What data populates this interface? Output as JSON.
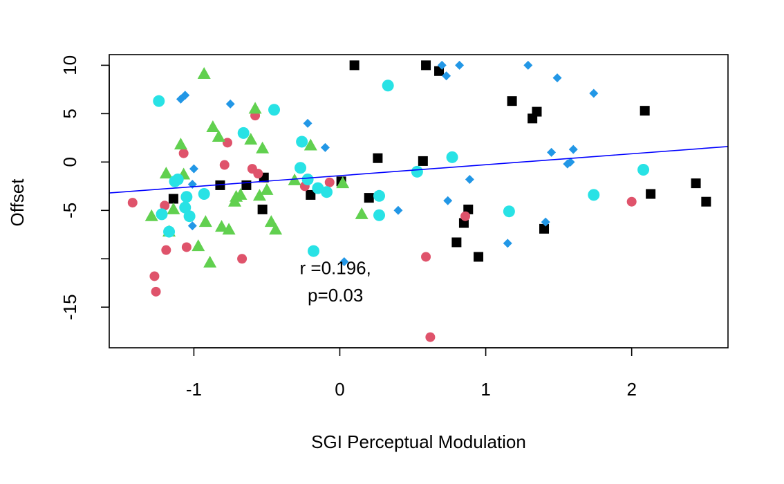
{
  "chart_data": {
    "type": "scatter",
    "title": "",
    "xlabel": "SGI Perceptual Modulation",
    "ylabel": "Offset",
    "xlim": [
      -1.58,
      2.66
    ],
    "ylim": [
      -19.2,
      11.1
    ],
    "x_ticks": [
      -1,
      0,
      1,
      2
    ],
    "x_tick_labels": [
      "-1",
      "0",
      "1",
      "2"
    ],
    "y_ticks": [
      10,
      5,
      0,
      -5,
      -15
    ],
    "y_tick_labels": [
      "10",
      "5",
      "0",
      "-5",
      "-15"
    ],
    "grid": false,
    "annotation": {
      "line1": "r =0.196,",
      "line2": "p=0.03",
      "x": -0.03,
      "y_line1": -11.6,
      "y_line2": -14.4
    },
    "regression_line": {
      "color": "#0000ff",
      "points": [
        [
          -1.58,
          -3.2
        ],
        [
          2.66,
          1.6
        ]
      ]
    },
    "series": [
      {
        "marker": "square",
        "color": "#000000",
        "points": [
          [
            -1.14,
            -3.8
          ],
          [
            -0.82,
            -2.4
          ],
          [
            -0.64,
            -2.4
          ],
          [
            -0.52,
            -1.6
          ],
          [
            -0.53,
            -4.9
          ],
          [
            -0.2,
            -3.4
          ],
          [
            0.01,
            -2.0
          ],
          [
            0.2,
            -3.7
          ],
          [
            0.26,
            0.4
          ],
          [
            0.1,
            10.0
          ],
          [
            0.57,
            0.1
          ],
          [
            0.59,
            10.0
          ],
          [
            0.68,
            9.4
          ],
          [
            0.8,
            -8.3
          ],
          [
            0.85,
            -6.3
          ],
          [
            0.88,
            -4.9
          ],
          [
            0.95,
            -9.8
          ],
          [
            1.18,
            6.3
          ],
          [
            1.32,
            4.5
          ],
          [
            1.35,
            5.2
          ],
          [
            1.4,
            -6.9
          ],
          [
            2.09,
            5.3
          ],
          [
            2.13,
            -3.3
          ],
          [
            2.44,
            -2.2
          ],
          [
            2.51,
            -4.1
          ]
        ]
      },
      {
        "marker": "circle",
        "color": "#df536b",
        "points": [
          [
            -1.42,
            -4.2
          ],
          [
            -1.27,
            -11.8
          ],
          [
            -1.26,
            -13.4
          ],
          [
            -1.2,
            -4.5
          ],
          [
            -1.19,
            -9.1
          ],
          [
            -1.07,
            0.9
          ],
          [
            -1.05,
            -8.8
          ],
          [
            -0.79,
            -0.3
          ],
          [
            -0.77,
            2.0
          ],
          [
            -0.67,
            -10.0
          ],
          [
            -0.6,
            -0.7
          ],
          [
            -0.58,
            4.8
          ],
          [
            -0.56,
            -1.2
          ],
          [
            -0.24,
            -2.5
          ],
          [
            -0.07,
            -2.1
          ],
          [
            0.59,
            -9.8
          ],
          [
            0.62,
            -18.1
          ],
          [
            0.86,
            -5.6
          ],
          [
            2.0,
            -4.1
          ]
        ]
      },
      {
        "marker": "triangle",
        "color": "#61d04f",
        "points": [
          [
            -1.29,
            -5.6
          ],
          [
            -1.19,
            -1.2
          ],
          [
            -1.17,
            -7.2
          ],
          [
            -1.14,
            -4.9
          ],
          [
            -1.09,
            1.8
          ],
          [
            -1.07,
            -1.3
          ],
          [
            -0.97,
            -8.7
          ],
          [
            -0.93,
            9.1
          ],
          [
            -0.92,
            -6.2
          ],
          [
            -0.89,
            -10.4
          ],
          [
            -0.87,
            3.6
          ],
          [
            -0.83,
            2.6
          ],
          [
            -0.81,
            -6.7
          ],
          [
            -0.76,
            -7.0
          ],
          [
            -0.72,
            -4.1
          ],
          [
            -0.71,
            -3.6
          ],
          [
            -0.68,
            -3.4
          ],
          [
            -0.61,
            2.3
          ],
          [
            -0.58,
            5.5
          ],
          [
            -0.55,
            -3.5
          ],
          [
            -0.53,
            1.4
          ],
          [
            -0.5,
            -2.9
          ],
          [
            -0.47,
            -6.2
          ],
          [
            -0.44,
            -7.0
          ],
          [
            -0.31,
            -1.9
          ],
          [
            -0.2,
            1.7
          ],
          [
            0.02,
            -2.2
          ],
          [
            0.15,
            -5.4
          ]
        ]
      },
      {
        "marker": "circle",
        "color": "#28e2e5",
        "points": [
          [
            -1.24,
            6.3
          ],
          [
            -1.22,
            -5.4
          ],
          [
            -1.17,
            -7.2
          ],
          [
            -1.13,
            -2.0
          ],
          [
            -1.11,
            -1.8
          ],
          [
            -1.06,
            -4.7
          ],
          [
            -1.05,
            -3.6
          ],
          [
            -1.03,
            -5.6
          ],
          [
            -0.93,
            -3.3
          ],
          [
            -0.66,
            3.0
          ],
          [
            -0.45,
            5.4
          ],
          [
            -0.27,
            -0.6
          ],
          [
            -0.26,
            2.1
          ],
          [
            -0.22,
            -1.8
          ],
          [
            -0.18,
            -9.2
          ],
          [
            -0.15,
            -2.7
          ],
          [
            -0.09,
            -3.1
          ],
          [
            0.27,
            -3.5
          ],
          [
            0.27,
            -5.5
          ],
          [
            0.33,
            7.9
          ],
          [
            0.53,
            -1.0
          ],
          [
            0.77,
            0.5
          ],
          [
            1.16,
            -5.1
          ],
          [
            1.74,
            -3.4
          ],
          [
            2.08,
            -0.8
          ]
        ]
      },
      {
        "marker": "diamond",
        "color": "#2297e6",
        "points": [
          [
            -1.09,
            6.5
          ],
          [
            -1.06,
            6.9
          ],
          [
            -1.0,
            -0.7
          ],
          [
            -1.01,
            -2.3
          ],
          [
            -1.01,
            -6.6
          ],
          [
            -0.75,
            6.0
          ],
          [
            -0.22,
            4.0
          ],
          [
            -0.1,
            1.5
          ],
          [
            0.03,
            -10.3
          ],
          [
            0.4,
            -5.0
          ],
          [
            0.7,
            10.0
          ],
          [
            0.73,
            8.9
          ],
          [
            0.74,
            -4.0
          ],
          [
            0.82,
            10.0
          ],
          [
            0.89,
            -1.8
          ],
          [
            1.15,
            -8.4
          ],
          [
            1.29,
            10.0
          ],
          [
            1.41,
            -6.2
          ],
          [
            1.45,
            1.0
          ],
          [
            1.49,
            8.7
          ],
          [
            1.56,
            -0.2
          ],
          [
            1.58,
            0.0
          ],
          [
            1.6,
            1.3
          ],
          [
            1.74,
            7.1
          ]
        ]
      }
    ]
  }
}
